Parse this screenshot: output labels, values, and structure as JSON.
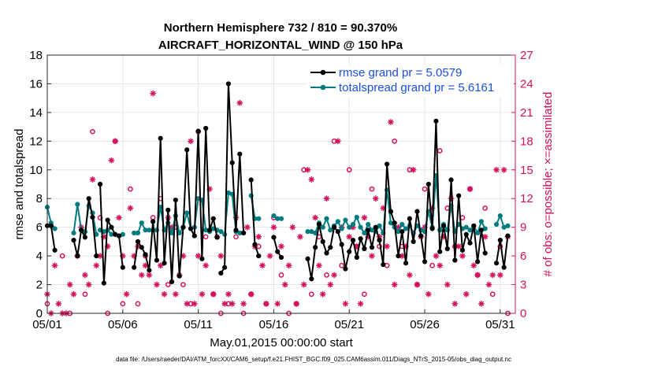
{
  "chart_data": {
    "type": "line",
    "title": "Northern Hemisphere 732 / 810 = 90.370%",
    "subtitle": "AIRCRAFT_HORIZONTAL_WIND @ 150 hPa",
    "xlabel": "May.01,2015 00:00:00 start",
    "ylabel": "rmse and totalspread",
    "ylabel_right": "# of obs: o=possible; ×=assimilated",
    "footnote": "data file: /Users/raeder/DAI/ATM_forcXX/CAM6_setup/f.e21.FHIST_BGC.f09_025.CAM6assim.011/Diags_NTrS_2015-05/obs_diag_output.nc",
    "xlim": [
      1,
      32
    ],
    "ylim": [
      0,
      18
    ],
    "ylim_right": [
      0,
      27
    ],
    "x_ticks": [
      1,
      6,
      11,
      16,
      21,
      26,
      31
    ],
    "x_tick_labels": [
      "05/01",
      "05/06",
      "05/11",
      "05/16",
      "05/21",
      "05/26",
      "05/31"
    ],
    "y_ticks": [
      0,
      2,
      4,
      6,
      8,
      10,
      12,
      14,
      16,
      18
    ],
    "y_ticks_right": [
      0,
      3,
      6,
      9,
      12,
      15,
      18,
      21,
      24,
      27
    ],
    "grid": true,
    "legend_position": "top-right",
    "colors": {
      "rmse": "#000000",
      "totalspread": "#007b80",
      "obs": "#d6105b",
      "legend_text": "#1a4fe0"
    },
    "series": [
      {
        "name": "rmse grand pr = 5.0579",
        "axis": "left",
        "segments": [
          {
            "x": [
              1.0,
              1.25,
              1.5
            ],
            "y": [
              6.1,
              6.1,
              4.4
            ]
          },
          {
            "x": [
              2.75,
              3.0,
              3.25,
              3.5,
              3.75,
              4.0,
              4.25
            ],
            "y": [
              5.1,
              4.0,
              5.8,
              5.3,
              8.0,
              6.7,
              4.0
            ]
          },
          {
            "x": [
              4.5,
              4.75,
              5.0,
              5.25,
              5.5,
              5.75,
              6.0
            ],
            "y": [
              9.0,
              2.1,
              6.5,
              6.0,
              5.5,
              5.4,
              3.2
            ]
          },
          {
            "x": [
              6.75,
              7.0,
              7.25,
              7.5,
              7.75,
              8.0,
              8.25,
              8.5,
              8.75,
              9.0,
              9.25,
              9.5,
              9.75,
              10.0,
              10.25,
              10.5,
              10.75,
              11.0,
              11.25,
              11.5,
              11.75,
              12.0,
              12.25
            ],
            "y": [
              3.2,
              5.0,
              4.6,
              4.1,
              3.0,
              6.4,
              3.7,
              12.2,
              3.5,
              7.2,
              2.2,
              7.9,
              2.6,
              6.0,
              11.4,
              5.9,
              5.4,
              12.7,
              3.8,
              12.9,
              5.8,
              6.6,
              5.3
            ]
          },
          {
            "x": [
              12.5,
              12.75,
              13.0,
              13.25,
              13.5,
              13.75,
              14.0
            ],
            "y": [
              2.8,
              3.2,
              16.0,
              10.5,
              5.8,
              11.1,
              5.6
            ]
          },
          {
            "x": [
              14.5,
              14.75,
              15.0
            ],
            "y": [
              9.3,
              4.8,
              4.0
            ]
          },
          {
            "x": [
              16.0,
              16.25,
              16.5
            ],
            "y": [
              5.3,
              4.3,
              3.9
            ]
          },
          {
            "x": [
              18.25,
              18.5,
              18.75,
              19.0,
              19.25,
              19.5,
              19.75,
              20.0,
              20.25,
              20.5,
              20.75,
              21.0,
              21.25,
              21.5,
              21.75,
              22.0,
              22.25,
              22.5,
              22.75,
              23.0,
              23.25,
              23.5,
              23.75,
              24.0,
              24.25,
              24.5,
              24.75,
              25.0,
              25.25,
              25.5,
              25.75,
              26.0,
              26.25,
              26.5,
              26.75,
              27.0,
              27.25,
              27.5,
              27.75,
              28.0,
              28.25,
              28.5,
              28.75,
              29.0,
              29.25,
              29.5,
              29.75,
              30.0
            ],
            "y": [
              3.8,
              2.4,
              4.6,
              6.2,
              5.0,
              4.2,
              4.6,
              6.0,
              5.7,
              4.8,
              3.1,
              4.3,
              5.1,
              3.9,
              5.2,
              4.5,
              5.8,
              4.6,
              6.0,
              5.1,
              3.4,
              10.4,
              7.1,
              6.3,
              4.0,
              5.7,
              3.5,
              6.6,
              5.0,
              7.1,
              5.4,
              3.6,
              9.0,
              5.9,
              13.4,
              4.3,
              6.1,
              4.5,
              9.3,
              3.7,
              8.2,
              4.4,
              5.5,
              4.9,
              6.1,
              3.6,
              5.8,
              4.2
            ]
          },
          {
            "x": [
              30.75,
              31.0,
              31.25,
              31.5
            ],
            "y": [
              3.5,
              5.1,
              3.2,
              5.4
            ]
          }
        ]
      },
      {
        "name": "totalspread grand pr = 5.6161",
        "axis": "left",
        "segments": [
          {
            "x": [
              1.0,
              1.25,
              1.5
            ],
            "y": [
              7.4,
              6.3,
              5.9
            ]
          },
          {
            "x": [
              2.75,
              3.0,
              3.25,
              3.5,
              3.75,
              4.0,
              4.25
            ],
            "y": [
              5.6,
              7.6,
              5.8,
              5.7,
              7.5,
              7.0,
              5.5
            ]
          },
          {
            "x": [
              4.5,
              4.75,
              5.0,
              5.25,
              5.5,
              5.75,
              6.0
            ],
            "y": [
              5.8,
              5.7,
              5.8,
              5.5,
              5.5,
              5.4,
              5.5
            ]
          },
          {
            "x": [
              6.75,
              7.0,
              7.25,
              7.5,
              7.75,
              8.0,
              8.25,
              8.5,
              8.75,
              9.0,
              9.25,
              9.5,
              9.75,
              10.0,
              10.25,
              10.5,
              10.75,
              11.0,
              11.25,
              11.5,
              11.75,
              12.0,
              12.25
            ],
            "y": [
              5.6,
              5.6,
              6.3,
              5.8,
              5.8,
              5.8,
              5.8,
              7.4,
              5.8,
              6.3,
              5.6,
              6.8,
              5.6,
              6.0,
              7.0,
              5.9,
              6.0,
              8.0,
              7.9,
              5.8,
              5.7,
              5.9,
              5.8
            ]
          },
          {
            "x": [
              12.5,
              12.75,
              13.0,
              13.25,
              13.5,
              13.75,
              14.0
            ],
            "y": [
              5.7,
              5.5,
              8.4,
              8.3,
              5.7,
              5.6,
              5.6
            ]
          },
          {
            "x": [
              14.5,
              14.75,
              15.0
            ],
            "y": [
              8.2,
              6.6,
              6.6
            ]
          },
          {
            "x": [
              16.0,
              16.25,
              16.5
            ],
            "y": [
              6.8,
              6.6,
              6.6
            ]
          },
          {
            "x": [
              18.25,
              18.5,
              18.75,
              19.0,
              19.25,
              19.5,
              19.75,
              20.0,
              20.25,
              20.5,
              20.75,
              21.0,
              21.25,
              21.5,
              21.75,
              22.0,
              22.25,
              22.5,
              22.75,
              23.0,
              23.25,
              23.5,
              23.75,
              24.0,
              24.25,
              24.5,
              24.75,
              25.0,
              25.25,
              25.5,
              25.75,
              26.0,
              26.25,
              26.5,
              26.75,
              27.0,
              27.25,
              27.5,
              27.75,
              28.0,
              28.25,
              28.5,
              28.75,
              29.0,
              29.25,
              29.5,
              29.75,
              30.0
            ],
            "y": [
              5.7,
              5.7,
              5.6,
              6.3,
              6.0,
              6.6,
              5.8,
              6.1,
              6.4,
              5.9,
              6.5,
              6.0,
              6.2,
              6.7,
              6.0,
              5.6,
              6.2,
              5.8,
              5.7,
              6.1,
              5.6,
              8.6,
              6.3,
              6.0,
              5.7,
              6.2,
              5.9,
              6.1,
              5.6,
              6.1,
              5.8,
              5.7,
              7.1,
              6.0,
              9.6,
              5.8,
              6.2,
              5.8,
              7.5,
              5.7,
              6.2,
              5.9,
              6.0,
              5.8,
              6.1,
              5.6,
              6.4,
              5.9
            ]
          },
          {
            "x": [
              30.75,
              31.0,
              31.25,
              31.5
            ],
            "y": [
              6.2,
              6.8,
              6.0,
              6.1
            ]
          }
        ]
      },
      {
        "name": "# of obs possible",
        "axis": "right",
        "marker": "o",
        "x": [
          1.0,
          2.0,
          2.5,
          3.5,
          4.0,
          4.5,
          5.0,
          5.5,
          6.0,
          6.5,
          7.0,
          7.5,
          8.0,
          8.5,
          9.0,
          9.5,
          10.0,
          10.5,
          11.0,
          11.5,
          12.0,
          12.5,
          13.0,
          13.5,
          14.0,
          14.5,
          15.0,
          15.5,
          16.0,
          16.5,
          17.0,
          17.5,
          18.0,
          18.5,
          19.0,
          19.5,
          20.0,
          20.5,
          21.0,
          21.5,
          22.0,
          22.5,
          23.0,
          23.5,
          24.0,
          24.5,
          25.0,
          25.5,
          26.0,
          26.5,
          27.0,
          27.5,
          28.0,
          28.5,
          29.0,
          29.5,
          30.0,
          30.5,
          31.0,
          31.5
        ],
        "y": [
          1,
          6,
          0,
          2,
          19,
          10,
          0,
          18,
          1,
          13,
          1,
          6,
          10,
          12,
          3,
          9,
          3,
          1,
          19,
          8,
          2,
          0,
          1,
          8,
          0,
          2,
          7,
          1,
          10,
          4,
          0,
          1,
          15,
          2,
          8,
          4,
          18,
          5,
          15,
          7,
          2,
          13,
          7,
          5,
          18,
          7,
          15,
          3,
          13,
          5,
          17,
          11,
          7,
          10,
          13,
          4,
          11,
          2,
          7,
          0
        ]
      },
      {
        "name": "# of obs assimilated",
        "axis": "right",
        "marker": "x",
        "x": [
          1.0,
          1.25,
          1.5,
          1.75,
          2.0,
          2.25,
          2.5,
          2.75,
          3.0,
          3.25,
          3.5,
          3.75,
          4.0,
          4.25,
          4.5,
          4.75,
          5.0,
          5.25,
          5.5,
          5.75,
          6.0,
          6.25,
          6.5,
          6.75,
          7.0,
          7.25,
          7.5,
          7.75,
          8.0,
          8.25,
          8.5,
          8.75,
          9.0,
          9.25,
          9.5,
          9.75,
          10.0,
          10.25,
          10.5,
          10.75,
          11.0,
          11.25,
          11.5,
          11.75,
          12.0,
          12.25,
          12.5,
          12.75,
          13.0,
          13.25,
          13.5,
          13.75,
          14.0,
          14.25,
          14.5,
          14.75,
          15.0,
          15.25,
          15.5,
          15.75,
          16.0,
          16.25,
          16.5,
          16.75,
          17.0,
          17.25,
          17.5,
          17.75,
          18.0,
          18.25,
          18.5,
          18.75,
          19.0,
          19.25,
          19.5,
          19.75,
          20.0,
          20.25,
          20.5,
          20.75,
          21.0,
          21.25,
          21.5,
          21.75,
          22.0,
          22.25,
          22.5,
          22.75,
          23.0,
          23.25,
          23.5,
          23.75,
          24.0,
          24.25,
          24.5,
          24.75,
          25.0,
          25.25,
          25.5,
          25.75,
          26.0,
          26.25,
          26.5,
          26.75,
          27.0,
          27.25,
          27.5,
          27.75,
          28.0,
          28.25,
          28.5,
          28.75,
          29.0,
          29.25,
          29.5,
          29.75,
          30.0,
          30.25,
          30.5,
          30.75,
          31.0,
          31.25,
          31.5
        ],
        "y": [
          2,
          0,
          5,
          1,
          0,
          0,
          3,
          2,
          6,
          9,
          4,
          3,
          14,
          5,
          6,
          8,
          7,
          16,
          18,
          10,
          6,
          2,
          11,
          6,
          7,
          4,
          5,
          4,
          23,
          3,
          5,
          2,
          10,
          9,
          2,
          4,
          6,
          1,
          18,
          1,
          6,
          2,
          5,
          13,
          2,
          8,
          6,
          1,
          2,
          1,
          10,
          22,
          1,
          9,
          2,
          7,
          8,
          5,
          1,
          6,
          9,
          1,
          7,
          3,
          5,
          9,
          1,
          8,
          3,
          15,
          14,
          10,
          5,
          2,
          12,
          3,
          4,
          18,
          9,
          1,
          8,
          9,
          7,
          1,
          10,
          8,
          6,
          12,
          8,
          11,
          7,
          20,
          3,
          9,
          6,
          7,
          4,
          15,
          3,
          8,
          9,
          2,
          11,
          6,
          5,
          8,
          3,
          12,
          1,
          7,
          6,
          2,
          13,
          5,
          4,
          1,
          8,
          3,
          4,
          15,
          4,
          15,
          8
        ]
      }
    ]
  }
}
